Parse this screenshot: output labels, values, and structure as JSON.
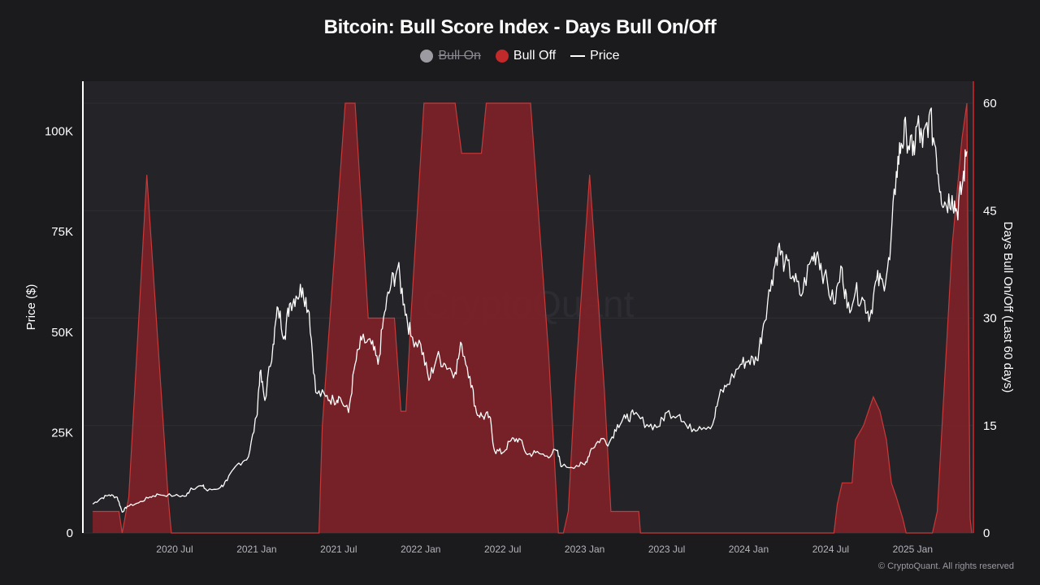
{
  "chart_data": {
    "type": "area+line",
    "title": "Bitcoin: Bull Score Index - Days Bull On/Off",
    "legend": [
      {
        "label": "Bull On",
        "color": "#9b9ba1",
        "hidden": true
      },
      {
        "label": "Bull Off",
        "color": "#c02a2a",
        "hidden": false
      },
      {
        "label": "Price",
        "color": "#ffffff",
        "hidden": false
      }
    ],
    "ylabel_left": "Price ($)",
    "ylabel_right": "Days Bull On/Off (Last 60 days)",
    "xlabel": "",
    "x_range": [
      2020.0,
      2025.6
    ],
    "x_ticks": [
      {
        "x": 2020.5,
        "label": "2020 Jul"
      },
      {
        "x": 2021.0,
        "label": "2021 Jan"
      },
      {
        "x": 2021.5,
        "label": "2021 Jul"
      },
      {
        "x": 2022.0,
        "label": "2022 Jan"
      },
      {
        "x": 2022.5,
        "label": "2022 Jul"
      },
      {
        "x": 2023.0,
        "label": "2023 Jan"
      },
      {
        "x": 2023.5,
        "label": "2023 Jul"
      },
      {
        "x": 2024.0,
        "label": "2024 Jan"
      },
      {
        "x": 2024.5,
        "label": "2024 Jul"
      },
      {
        "x": 2025.0,
        "label": "2025 Jan"
      }
    ],
    "y_left": {
      "min": 0,
      "max": 107000,
      "ticks": [
        0,
        25000,
        50000,
        75000,
        100000
      ],
      "tick_labels": [
        "0",
        "25K",
        "50K",
        "75K",
        "100K"
      ]
    },
    "y_right": {
      "min": 0,
      "max": 60,
      "ticks": [
        0,
        15,
        30,
        45,
        60
      ],
      "tick_labels": [
        "0",
        "15",
        "30",
        "45",
        "60"
      ]
    },
    "bull_off_days": [
      [
        2020.0,
        3
      ],
      [
        2020.16,
        3
      ],
      [
        2020.18,
        0
      ],
      [
        2020.22,
        5
      ],
      [
        2020.33,
        50
      ],
      [
        2020.46,
        5
      ],
      [
        2020.48,
        0
      ],
      [
        2021.38,
        0
      ],
      [
        2021.4,
        15
      ],
      [
        2021.54,
        60
      ],
      [
        2021.6,
        60
      ],
      [
        2021.68,
        30
      ],
      [
        2021.75,
        30
      ],
      [
        2021.84,
        30
      ],
      [
        2021.88,
        17
      ],
      [
        2021.91,
        17
      ],
      [
        2021.94,
        30
      ],
      [
        2022.02,
        60
      ],
      [
        2022.21,
        60
      ],
      [
        2022.25,
        53
      ],
      [
        2022.37,
        53
      ],
      [
        2022.4,
        60
      ],
      [
        2022.67,
        60
      ],
      [
        2022.78,
        25
      ],
      [
        2022.84,
        0
      ],
      [
        2022.87,
        0
      ],
      [
        2022.9,
        3
      ],
      [
        2022.94,
        20
      ],
      [
        2023.03,
        50
      ],
      [
        2023.12,
        20
      ],
      [
        2023.16,
        3
      ],
      [
        2023.33,
        3
      ],
      [
        2023.34,
        0
      ],
      [
        2024.52,
        0
      ],
      [
        2024.54,
        4
      ],
      [
        2024.57,
        7
      ],
      [
        2024.63,
        7
      ],
      [
        2024.65,
        13
      ],
      [
        2024.7,
        15
      ],
      [
        2024.73,
        17
      ],
      [
        2024.76,
        19
      ],
      [
        2024.8,
        17
      ],
      [
        2024.82,
        15
      ],
      [
        2024.84,
        13
      ],
      [
        2024.87,
        7
      ],
      [
        2024.9,
        5
      ],
      [
        2024.94,
        2
      ],
      [
        2024.96,
        0
      ],
      [
        2025.12,
        0
      ],
      [
        2025.15,
        3
      ],
      [
        2025.24,
        40
      ],
      [
        2025.3,
        55
      ],
      [
        2025.33,
        60
      ],
      [
        2025.35,
        2
      ],
      [
        2025.36,
        0
      ]
    ],
    "price": [
      [
        2020.0,
        7200
      ],
      [
        2020.05,
        8600
      ],
      [
        2020.1,
        9500
      ],
      [
        2020.15,
        8900
      ],
      [
        2020.18,
        5200
      ],
      [
        2020.21,
        6600
      ],
      [
        2020.28,
        7500
      ],
      [
        2020.35,
        9000
      ],
      [
        2020.4,
        9600
      ],
      [
        2020.5,
        9300
      ],
      [
        2020.57,
        9200
      ],
      [
        2020.6,
        11200
      ],
      [
        2020.67,
        11700
      ],
      [
        2020.7,
        10500
      ],
      [
        2020.78,
        11400
      ],
      [
        2020.82,
        13000
      ],
      [
        2020.88,
        17000
      ],
      [
        2020.95,
        19000
      ],
      [
        2021.0,
        29000
      ],
      [
        2021.02,
        40000
      ],
      [
        2021.05,
        33000
      ],
      [
        2021.1,
        47000
      ],
      [
        2021.13,
        56000
      ],
      [
        2021.17,
        49000
      ],
      [
        2021.2,
        57000
      ],
      [
        2021.24,
        59000
      ],
      [
        2021.28,
        61000
      ],
      [
        2021.32,
        55000
      ],
      [
        2021.36,
        35000
      ],
      [
        2021.42,
        34000
      ],
      [
        2021.47,
        33000
      ],
      [
        2021.5,
        34000
      ],
      [
        2021.56,
        30000
      ],
      [
        2021.6,
        42000
      ],
      [
        2021.64,
        48000
      ],
      [
        2021.7,
        47000
      ],
      [
        2021.74,
        42000
      ],
      [
        2021.78,
        55000
      ],
      [
        2021.82,
        62000
      ],
      [
        2021.86,
        66000
      ],
      [
        2021.9,
        57000
      ],
      [
        2021.94,
        49000
      ],
      [
        2022.0,
        47000
      ],
      [
        2022.05,
        38000
      ],
      [
        2022.1,
        44000
      ],
      [
        2022.15,
        42000
      ],
      [
        2022.21,
        40000
      ],
      [
        2022.25,
        47000
      ],
      [
        2022.3,
        39000
      ],
      [
        2022.34,
        30000
      ],
      [
        2022.38,
        29000
      ],
      [
        2022.42,
        29000
      ],
      [
        2022.45,
        20500
      ],
      [
        2022.5,
        20000
      ],
      [
        2022.55,
        23000
      ],
      [
        2022.6,
        23500
      ],
      [
        2022.65,
        19500
      ],
      [
        2022.7,
        20000
      ],
      [
        2022.77,
        19200
      ],
      [
        2022.83,
        20500
      ],
      [
        2022.86,
        16500
      ],
      [
        2022.95,
        16800
      ],
      [
        2023.0,
        17000
      ],
      [
        2023.04,
        21000
      ],
      [
        2023.1,
        23500
      ],
      [
        2023.15,
        22500
      ],
      [
        2023.2,
        27000
      ],
      [
        2023.25,
        28500
      ],
      [
        2023.3,
        29500
      ],
      [
        2023.38,
        27000
      ],
      [
        2023.45,
        26500
      ],
      [
        2023.5,
        30000
      ],
      [
        2023.58,
        29500
      ],
      [
        2023.63,
        26000
      ],
      [
        2023.7,
        26500
      ],
      [
        2023.78,
        27000
      ],
      [
        2023.82,
        34000
      ],
      [
        2023.87,
        37000
      ],
      [
        2023.95,
        42000
      ],
      [
        2024.0,
        43000
      ],
      [
        2024.05,
        43000
      ],
      [
        2024.09,
        52000
      ],
      [
        2024.14,
        63000
      ],
      [
        2024.18,
        71000
      ],
      [
        2024.22,
        67000
      ],
      [
        2024.27,
        64000
      ],
      [
        2024.32,
        59000
      ],
      [
        2024.38,
        68000
      ],
      [
        2024.42,
        70000
      ],
      [
        2024.46,
        64000
      ],
      [
        2024.52,
        57000
      ],
      [
        2024.57,
        66000
      ],
      [
        2024.6,
        56000
      ],
      [
        2024.65,
        60000
      ],
      [
        2024.7,
        58000
      ],
      [
        2024.74,
        54000
      ],
      [
        2024.78,
        63000
      ],
      [
        2024.82,
        62000
      ],
      [
        2024.86,
        68000
      ],
      [
        2024.9,
        90000
      ],
      [
        2024.93,
        97000
      ],
      [
        2024.96,
        100000
      ],
      [
        2025.0,
        94000
      ],
      [
        2025.03,
        102000
      ],
      [
        2025.06,
        96000
      ],
      [
        2025.1,
        104000
      ],
      [
        2025.14,
        96000
      ],
      [
        2025.17,
        85000
      ],
      [
        2025.2,
        82000
      ],
      [
        2025.24,
        84000
      ],
      [
        2025.27,
        80000
      ],
      [
        2025.3,
        86000
      ],
      [
        2025.33,
        95000
      ]
    ]
  },
  "watermark": "CryptoQuant",
  "copyright": "© CryptoQuant. All rights reserved",
  "colors": {
    "background": "#1b1b1e",
    "plot_background": "#232328",
    "bull_off_fill": "#7e2227",
    "bull_off_stroke": "#c63a3a",
    "price_line": "#ffffff",
    "grid": "#2e2e34",
    "axis_text": "#b4b4ba"
  }
}
